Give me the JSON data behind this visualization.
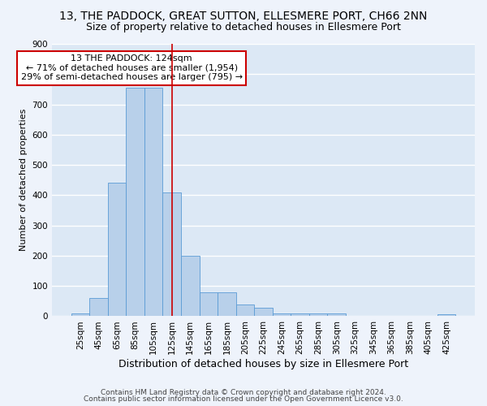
{
  "title": "13, THE PADDOCK, GREAT SUTTON, ELLESMERE PORT, CH66 2NN",
  "subtitle": "Size of property relative to detached houses in Ellesmere Port",
  "xlabel": "Distribution of detached houses by size in Ellesmere Port",
  "ylabel": "Number of detached properties",
  "footnote1": "Contains HM Land Registry data © Crown copyright and database right 2024.",
  "footnote2": "Contains public sector information licensed under the Open Government Licence v3.0.",
  "bin_labels": [
    "25sqm",
    "45sqm",
    "65sqm",
    "85sqm",
    "105sqm",
    "125sqm",
    "145sqm",
    "165sqm",
    "185sqm",
    "205sqm",
    "225sqm",
    "245sqm",
    "265sqm",
    "285sqm",
    "305sqm",
    "325sqm",
    "345sqm",
    "365sqm",
    "385sqm",
    "405sqm",
    "425sqm"
  ],
  "bar_values": [
    10,
    60,
    440,
    755,
    755,
    410,
    200,
    78,
    78,
    40,
    28,
    10,
    10,
    10,
    10,
    0,
    0,
    0,
    0,
    0,
    7
  ],
  "bar_color": "#b8d0ea",
  "bar_edge_color": "#5b9bd5",
  "highlight_index": 5,
  "highlight_line_color": "#cc0000",
  "annotation_text": "13 THE PADDOCK: 124sqm\n← 71% of detached houses are smaller (1,954)\n29% of semi-detached houses are larger (795) →",
  "annotation_box_color": "#ffffff",
  "annotation_box_edge_color": "#cc0000",
  "ylim": [
    0,
    900
  ],
  "yticks": [
    0,
    100,
    200,
    300,
    400,
    500,
    600,
    700,
    800,
    900
  ],
  "fig_background_color": "#eef3fb",
  "ax_background_color": "#dce8f5",
  "grid_color": "#ffffff",
  "title_fontsize": 10,
  "subtitle_fontsize": 9,
  "xlabel_fontsize": 9,
  "ylabel_fontsize": 8,
  "tick_fontsize": 7.5,
  "annotation_fontsize": 8,
  "footnote_fontsize": 6.5
}
